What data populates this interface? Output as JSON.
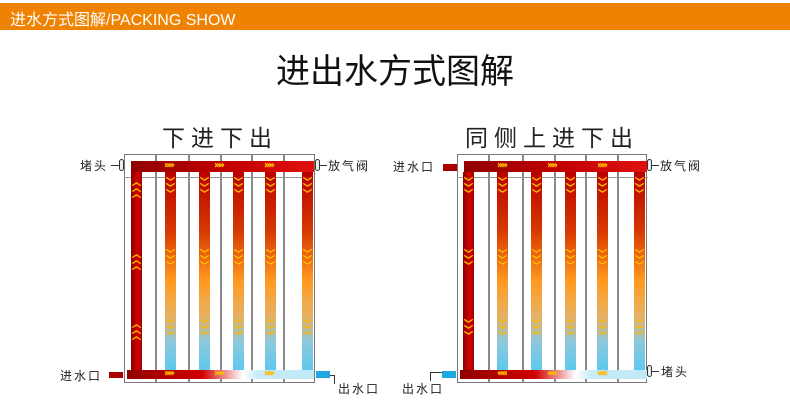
{
  "header": {
    "title": "进水方式图解/PACKING SHOW",
    "color": "#ef8200"
  },
  "main_title": "进出水方式图解",
  "colors": {
    "hot": "#b80000",
    "warm": "#ff9a20",
    "cool": "#5ec8f0",
    "inlet_pipe": "#a80000",
    "outlet_pipe": "#1aa9e0",
    "arrow": "#ffd200"
  },
  "diagrams": [
    {
      "title": "下进下出",
      "labels": {
        "top_left": "堵头",
        "top_right": "放气阀",
        "inlet": "进水口",
        "outlet": "出水口"
      },
      "inlet_position": "bottom-left",
      "outlet_position": "bottom-right",
      "first_tube_flow": "up",
      "top_bar_flow": "right",
      "bottom_bar_flow": "right"
    },
    {
      "title": "同侧上进下出",
      "labels": {
        "top_right": "放气阀",
        "bottom_right": "堵头",
        "inlet": "进水口",
        "outlet": "出水口"
      },
      "inlet_position": "top-left",
      "outlet_position": "bottom-left",
      "first_tube_flow": "down",
      "top_bar_flow": "right",
      "bottom_bar_flow": "left"
    }
  ]
}
